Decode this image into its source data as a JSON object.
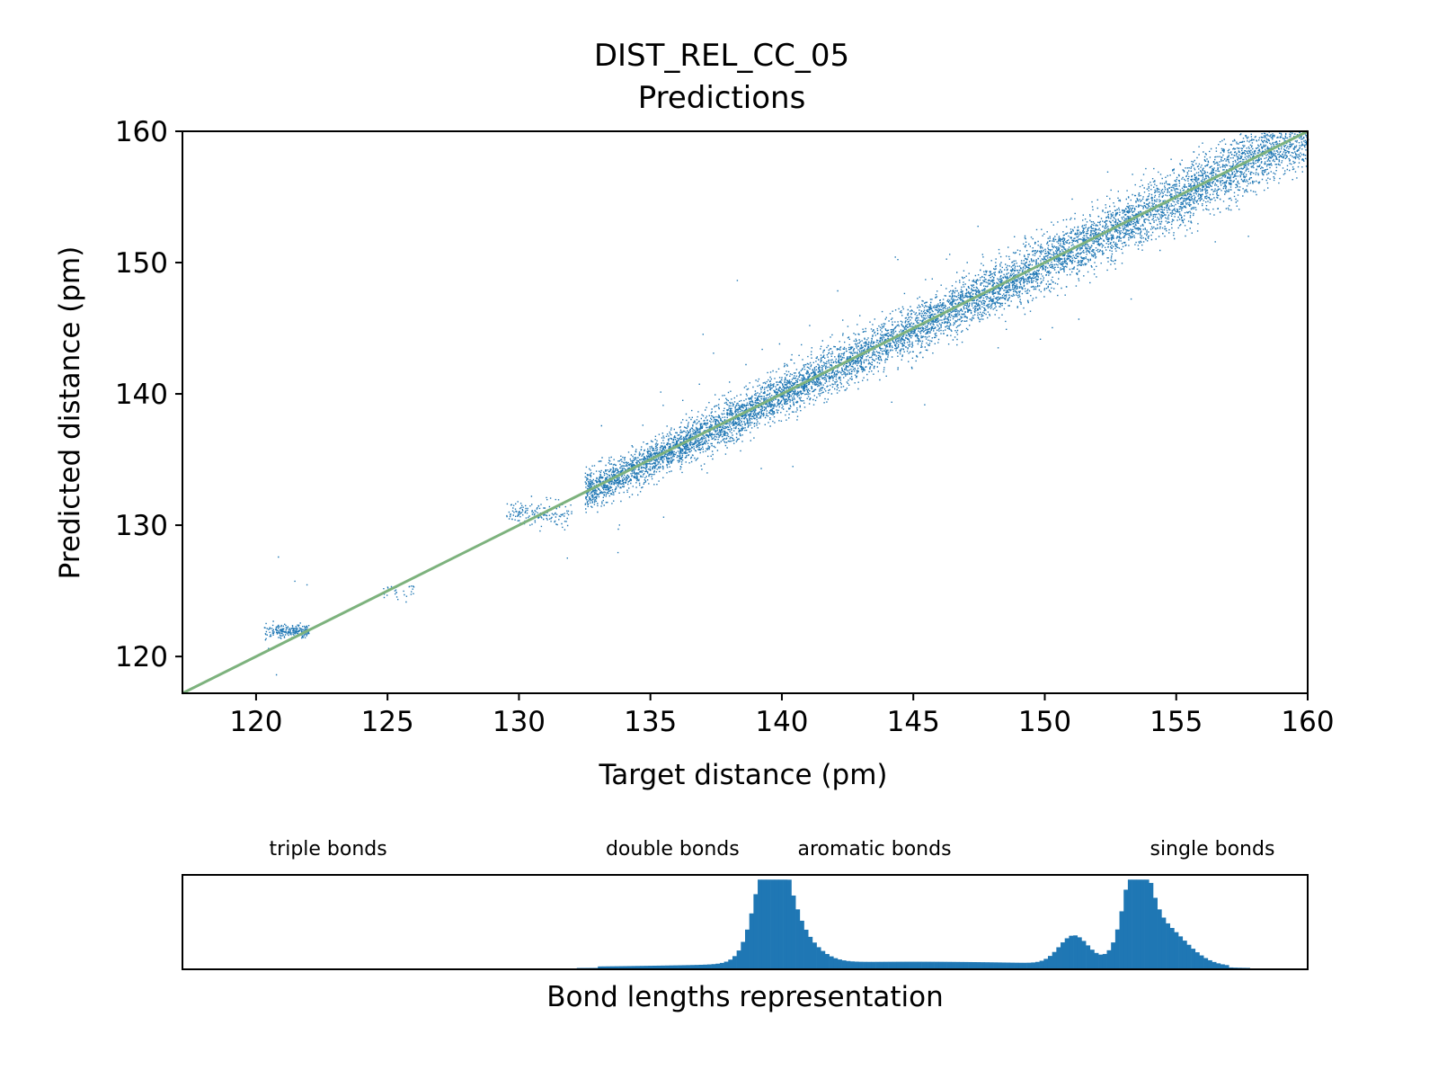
{
  "chart_data": [
    {
      "type": "scatter",
      "title": "DIST_REL_CC_05",
      "subtitle": "Predictions",
      "xlabel": "Target distance (pm)",
      "ylabel": "Predicted distance (pm)",
      "xlim": [
        117.2,
        160
      ],
      "ylim": [
        117.2,
        160
      ],
      "xticks": [
        120,
        125,
        130,
        135,
        140,
        145,
        150,
        155,
        160
      ],
      "yticks": [
        120,
        130,
        140,
        150,
        160
      ],
      "grid": false,
      "point_color": "#1f77b4",
      "reference_line": {
        "from": [
          117.2,
          117.2
        ],
        "to": [
          160,
          160
        ],
        "color": "#7db27d"
      },
      "clusters": [
        {
          "x_range": [
            120.3,
            122.0
          ],
          "y_center": 122.0,
          "y_spread": 0.25,
          "count": 220
        },
        {
          "x_range": [
            124.8,
            126.0
          ],
          "y_center": 125.2,
          "y_spread": 0.3,
          "count": 30
        },
        {
          "x_range": [
            129.5,
            132.0
          ],
          "y_center": 131.0,
          "y_spread": 0.45,
          "count": 160
        },
        {
          "x_range": [
            132.5,
            160.0
          ],
          "y_center": "y = x",
          "y_spread": 1.2,
          "count": 9000
        }
      ]
    },
    {
      "type": "bar",
      "xlabel": "Bond lengths representation",
      "xlim": [
        117.2,
        160
      ],
      "color": "#1f77b4",
      "annotations": [
        {
          "text": "triple bonds",
          "x": 120.5
        },
        {
          "text": "double bonds",
          "x": 133.3
        },
        {
          "text": "aromatic bonds",
          "x": 140.6
        },
        {
          "text": "single bonds",
          "x": 154.0
        }
      ],
      "bins": {
        "start": 132.2,
        "end": 157.8,
        "count": 160
      },
      "histogram_peaks": [
        {
          "center": 139.6,
          "width": 0.55,
          "height": 0.95
        },
        {
          "center": 140.1,
          "width": 0.9,
          "height": 0.45
        },
        {
          "center": 151.1,
          "width": 0.55,
          "height": 0.3
        },
        {
          "center": 153.5,
          "width": 0.45,
          "height": 0.9
        },
        {
          "center": 154.3,
          "width": 1.0,
          "height": 0.45
        }
      ],
      "histogram_baseline": 0.06
    }
  ]
}
